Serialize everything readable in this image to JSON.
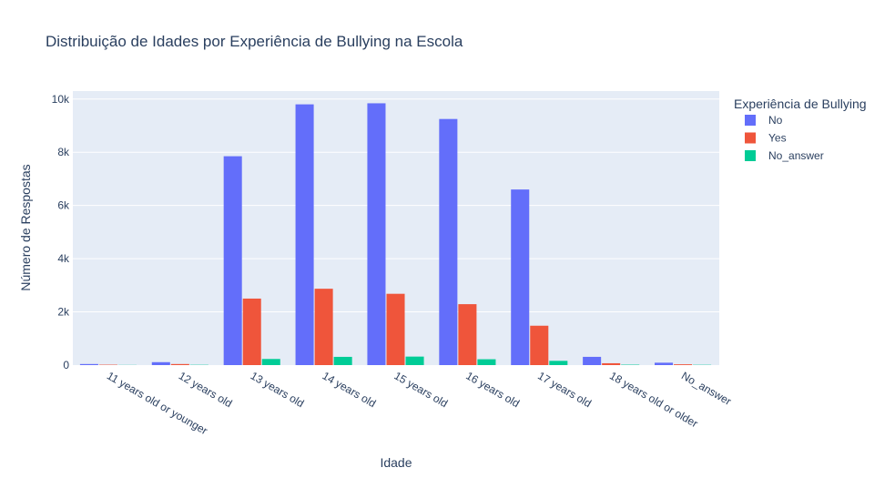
{
  "chart_data": {
    "type": "bar",
    "title": "Distribuição de Idades por Experiência de Bullying na Escola",
    "xlabel": "Idade",
    "ylabel": "Número de Respostas",
    "categories": [
      "11 years old or younger",
      "12 years old",
      "13 years old",
      "14 years old",
      "15 years old",
      "16 years old",
      "17 years old",
      "18 years old or older",
      "No_answer"
    ],
    "series": [
      {
        "name": "No",
        "color": "#636efa",
        "values": [
          40,
          110,
          7850,
          9800,
          9840,
          9250,
          6600,
          310,
          90
        ]
      },
      {
        "name": "Yes",
        "color": "#ef553b",
        "values": [
          15,
          40,
          2500,
          2870,
          2680,
          2290,
          1480,
          70,
          30
        ]
      },
      {
        "name": "No_answer",
        "color": "#00cc96",
        "values": [
          5,
          10,
          230,
          310,
          320,
          220,
          160,
          15,
          10
        ]
      }
    ],
    "ylim": [
      0,
      10300
    ],
    "yticks": [
      0,
      2000,
      4000,
      6000,
      8000,
      10000
    ],
    "ytick_labels": [
      "0",
      "2k",
      "4k",
      "6k",
      "8k",
      "10k"
    ],
    "legend_title": "Experiência de Bullying",
    "legend_position": "right",
    "grid": true,
    "background": "#e5ecf6"
  }
}
